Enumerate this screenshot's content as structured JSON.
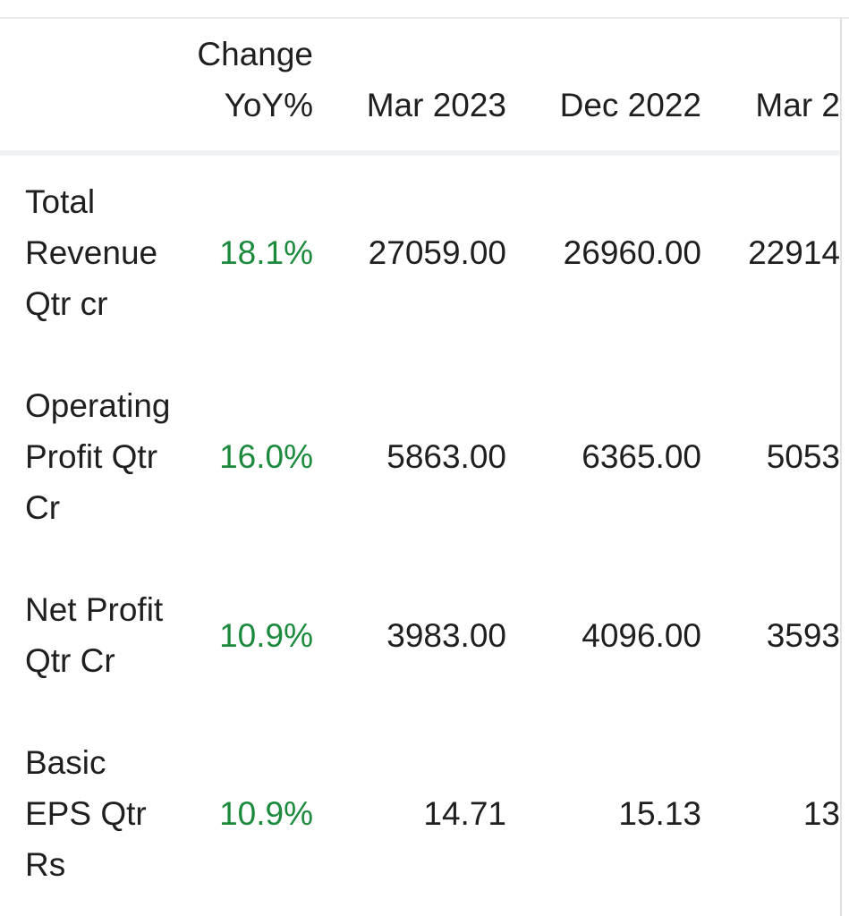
{
  "colors": {
    "background": "#ffffff",
    "text_primary": "#1f1f1f",
    "positive_change_green": "#1b8a3c",
    "header_divider": "#f1f2f3",
    "top_rule": "#ebebeb",
    "right_edge_border": "#e0e0e0"
  },
  "table": {
    "header": {
      "change_col_line1": "Change",
      "change_col_line2": "YoY%",
      "period_cols": [
        "Mar 2023",
        "Dec 2022",
        "Mar 2"
      ]
    },
    "rows": [
      {
        "label_lines": [
          "Total",
          "Revenue",
          "Qtr cr"
        ],
        "change_yoy": "18.1%",
        "mar_2023": "27059.00",
        "dec_2022": "26960.00",
        "mar_2022_visible": "22914"
      },
      {
        "label_lines": [
          "Operating",
          "Profit Qtr",
          "Cr"
        ],
        "change_yoy": "16.0%",
        "mar_2023": "5863.00",
        "dec_2022": "6365.00",
        "mar_2022_visible": "5053"
      },
      {
        "label_lines": [
          "Net Profit",
          "Qtr Cr"
        ],
        "change_yoy": "10.9%",
        "mar_2023": "3983.00",
        "dec_2022": "4096.00",
        "mar_2022_visible": "3593"
      },
      {
        "label_lines": [
          "Basic",
          "EPS Qtr",
          "Rs"
        ],
        "change_yoy": "10.9%",
        "mar_2023": "14.71",
        "dec_2022": "15.13",
        "mar_2022_visible": "13"
      }
    ]
  }
}
